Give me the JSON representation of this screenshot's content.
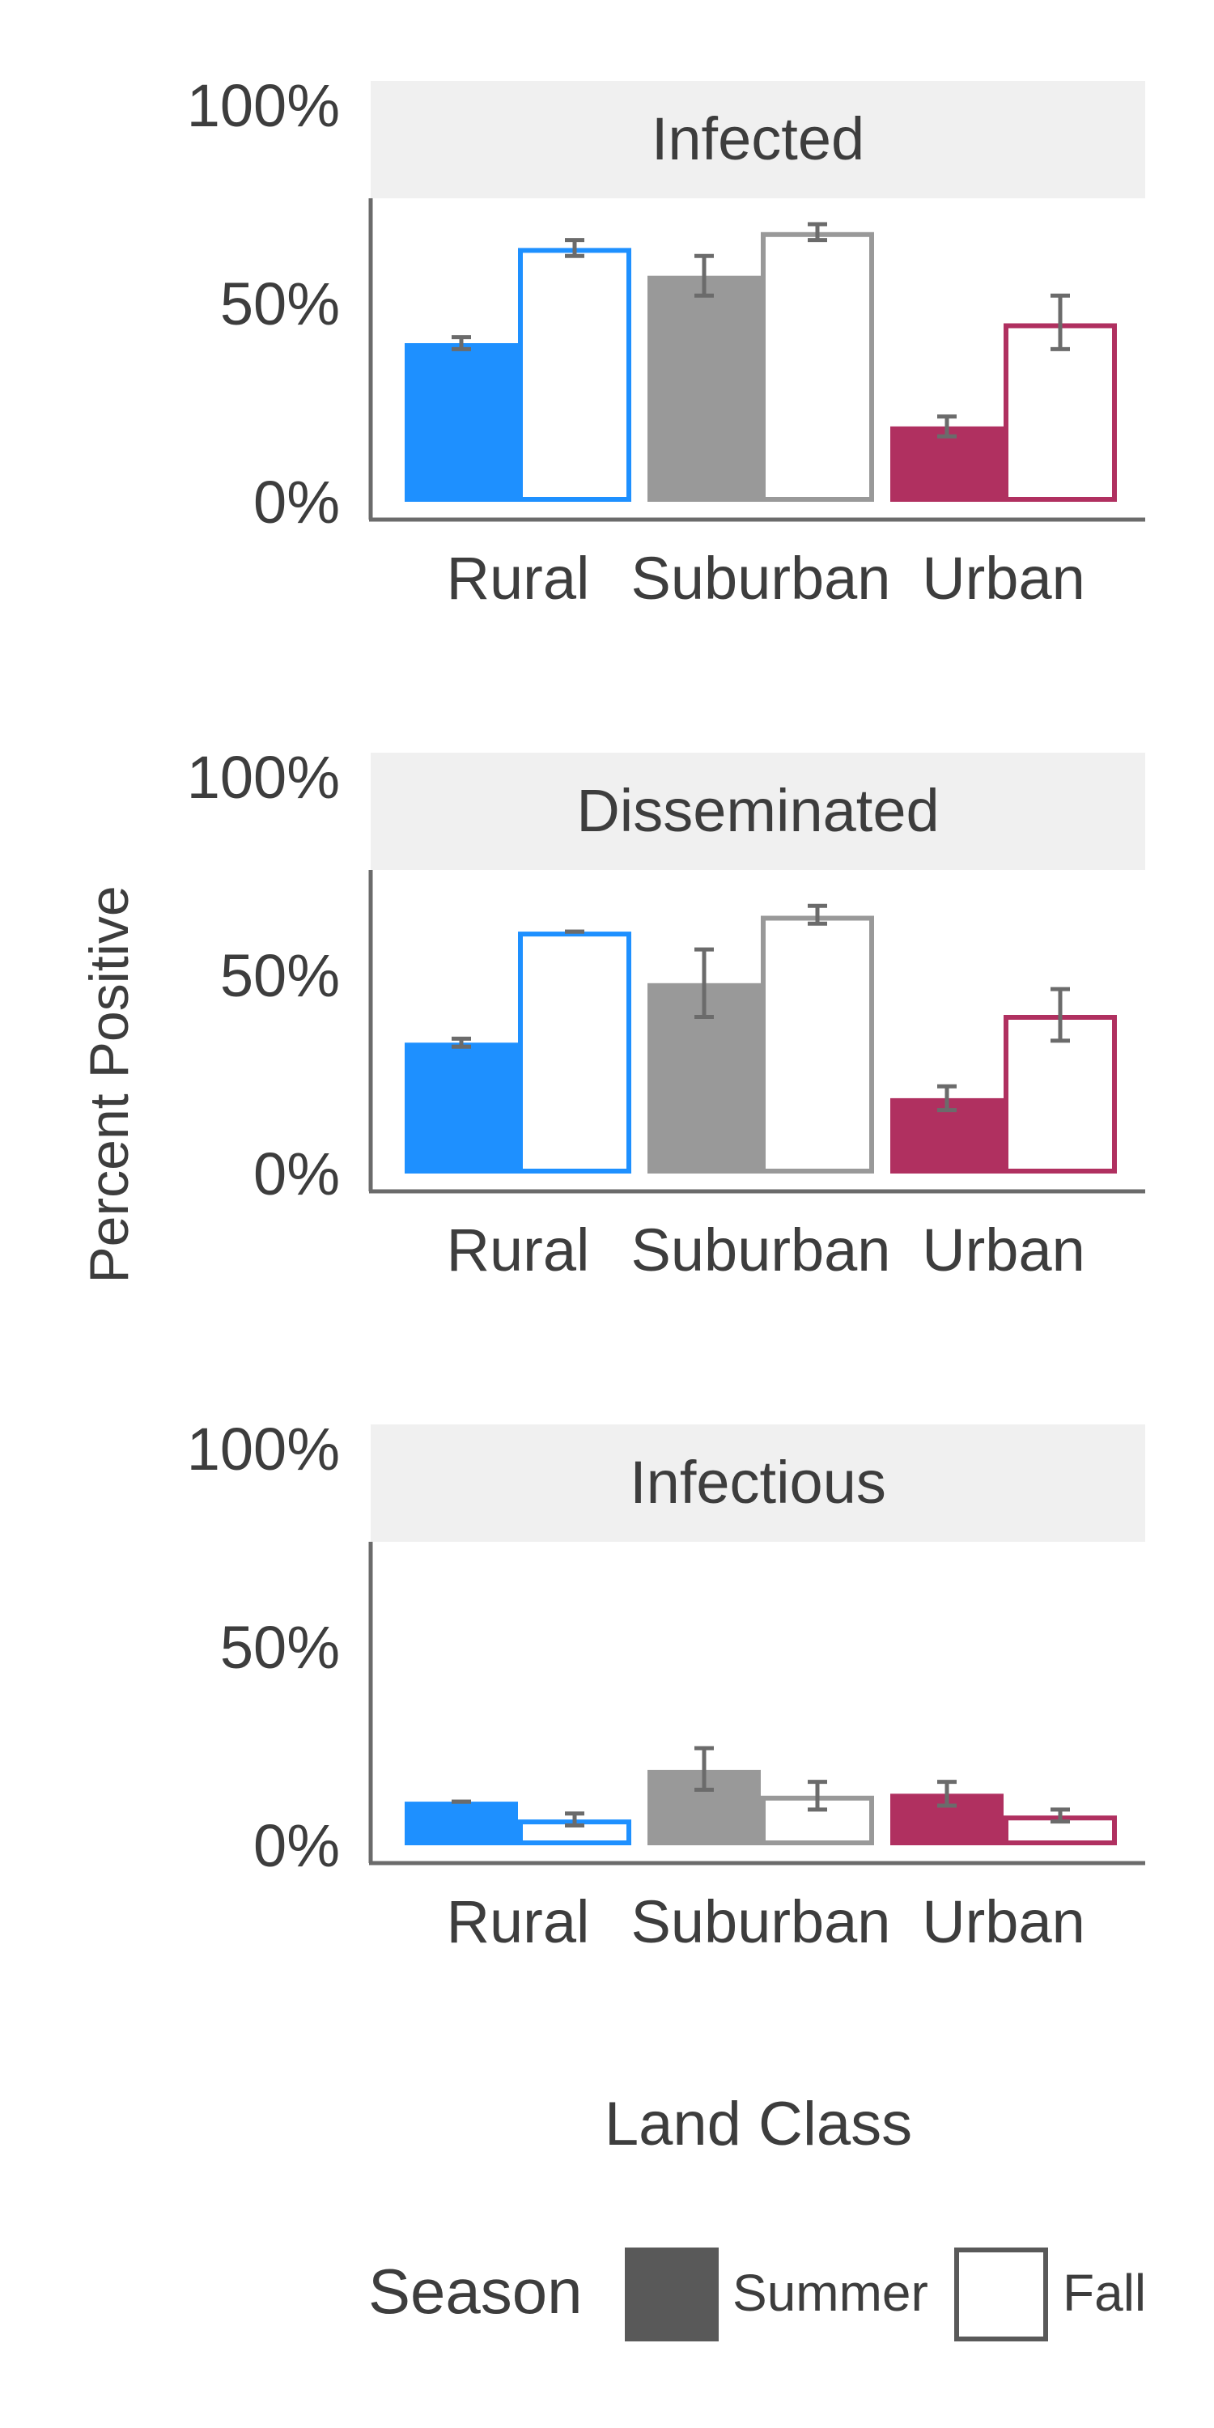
{
  "chart_data": {
    "type": "bar",
    "ylabel": "Percent Positive",
    "xlabel": "Land Class",
    "ylim": [
      0,
      100
    ],
    "yticks": [
      "0%",
      "50%",
      "100%"
    ],
    "categories": [
      "Rural",
      "Suburban",
      "Urban"
    ],
    "legend": {
      "title": "Season",
      "placement": "bottom",
      "entries": [
        {
          "name": "Summer",
          "style": "filled"
        },
        {
          "name": "Fall",
          "style": "outline"
        }
      ]
    },
    "colors": {
      "Rural": "#1e90ff",
      "Suburban": "#999999",
      "Urban": "#b03060"
    },
    "panels": [
      {
        "title": "Infected",
        "series": [
          {
            "name": "Summer",
            "values": [
              40,
              57,
              19
            ],
            "err_low": [
              38.5,
              52,
              16.5
            ],
            "err_high": [
              41.5,
              62,
              21.5
            ]
          },
          {
            "name": "Fall",
            "values": [
              64,
              68,
              45
            ],
            "err_low": [
              62,
              66,
              38.5
            ],
            "err_high": [
              66,
              70,
              52
            ]
          }
        ]
      },
      {
        "title": "Disseminated",
        "series": [
          {
            "name": "Summer",
            "values": [
              33,
              48,
              19
            ],
            "err_low": [
              32,
              39.5,
              16
            ],
            "err_high": [
              34,
              56.5,
              22
            ]
          },
          {
            "name": "Fall",
            "values": [
              61,
              65,
              40
            ],
            "err_low": [
              61,
              63,
              33.5
            ],
            "err_high": [
              61,
              67.5,
              46.5
            ]
          }
        ]
      },
      {
        "title": "Infectious",
        "series": [
          {
            "name": "Summer",
            "values": [
              11,
              19,
              13
            ],
            "err_low": [
              11,
              14,
              10
            ],
            "err_high": [
              11,
              24.5,
              16
            ]
          },
          {
            "name": "Fall",
            "values": [
              6.5,
              12.5,
              7.5
            ],
            "err_low": [
              5,
              9,
              6
            ],
            "err_high": [
              8,
              16,
              9
            ]
          }
        ]
      }
    ]
  }
}
